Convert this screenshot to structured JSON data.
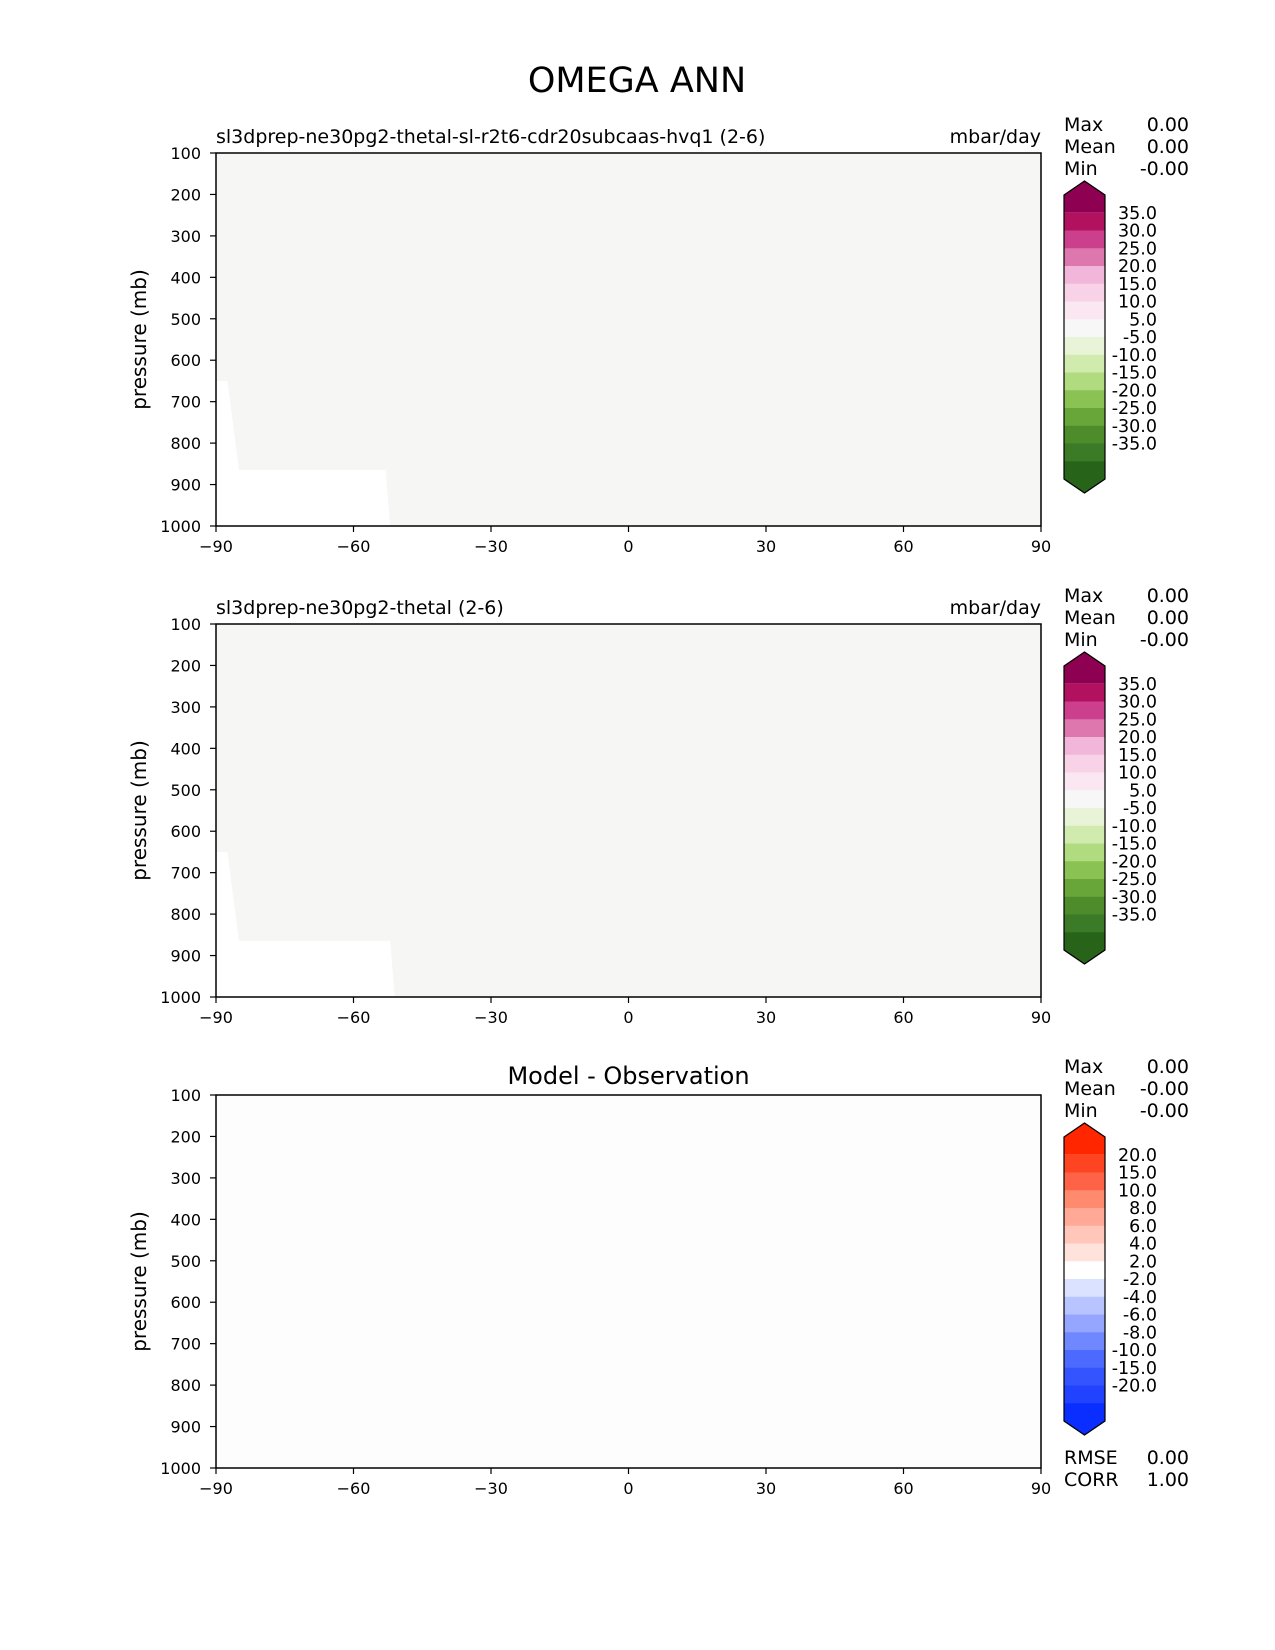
{
  "figure_title": "OMEGA ANN",
  "colors": {
    "panel_fill": "#f6f6f4",
    "diff_fill": "#fdfdfd",
    "white_patch": "#ffffff",
    "frame": "#000000",
    "colorbar_edge": "#000000"
  },
  "chart_data": [
    {
      "type": "heatmap",
      "title": "sl3dprep-ne30pg2-thetal-sl-r2t6-cdr20subcaas-hvq1 (2-6)",
      "units": "mbar/day",
      "ylabel": "pressure (mb)",
      "xlabel": "",
      "x_ticks": [
        "−90",
        "−60",
        "−30",
        "0",
        "30",
        "60",
        "90"
      ],
      "y_ticks": [
        "100",
        "200",
        "300",
        "400",
        "500",
        "600",
        "700",
        "800",
        "900",
        "1000"
      ],
      "xlim": [
        -90,
        90
      ],
      "ylim": [
        1000,
        100
      ],
      "field_value": 0.0,
      "missing_region": [
        [
          -90,
          650
        ],
        [
          -87.5,
          650
        ],
        [
          -85,
          865
        ],
        [
          -53,
          865
        ],
        [
          -52,
          1000
        ],
        [
          -90,
          1000
        ]
      ],
      "stats": [
        {
          "label": "Max",
          "value": "0.00"
        },
        {
          "label": "Mean",
          "value": "0.00"
        },
        {
          "label": "Min",
          "value": "-0.00"
        }
      ],
      "colorbar": {
        "labels": [
          "35.0",
          "30.0",
          "25.0",
          "20.0",
          "15.0",
          "10.0",
          "5.0",
          "-5.0",
          "-10.0",
          "-15.0",
          "-20.0",
          "-25.0",
          "-30.0",
          "-35.0"
        ],
        "colors": [
          "#8e0152",
          "#b2115f",
          "#cb3f8c",
          "#de77ae",
          "#f1b6da",
          "#f8d3e7",
          "#fbe7f1",
          "#f7f7f7",
          "#e8f3d8",
          "#d1ebaf",
          "#b0db7f",
          "#8bc254",
          "#69a63a",
          "#4d8b2b",
          "#3b7a26",
          "#276419"
        ]
      }
    },
    {
      "type": "heatmap",
      "title": "sl3dprep-ne30pg2-thetal (2-6)",
      "units": "mbar/day",
      "ylabel": "pressure (mb)",
      "xlabel": "",
      "x_ticks": [
        "−90",
        "−60",
        "−30",
        "0",
        "30",
        "60",
        "90"
      ],
      "y_ticks": [
        "100",
        "200",
        "300",
        "400",
        "500",
        "600",
        "700",
        "800",
        "900",
        "1000"
      ],
      "xlim": [
        -90,
        90
      ],
      "ylim": [
        1000,
        100
      ],
      "field_value": 0.0,
      "missing_region": [
        [
          -90,
          650
        ],
        [
          -87.5,
          650
        ],
        [
          -85,
          865
        ],
        [
          -52,
          865
        ],
        [
          -51,
          1000
        ],
        [
          -90,
          1000
        ]
      ],
      "stats": [
        {
          "label": "Max",
          "value": "0.00"
        },
        {
          "label": "Mean",
          "value": "0.00"
        },
        {
          "label": "Min",
          "value": "-0.00"
        }
      ],
      "colorbar": {
        "labels": [
          "35.0",
          "30.0",
          "25.0",
          "20.0",
          "15.0",
          "10.0",
          "5.0",
          "-5.0",
          "-10.0",
          "-15.0",
          "-20.0",
          "-25.0",
          "-30.0",
          "-35.0"
        ],
        "colors": [
          "#8e0152",
          "#b2115f",
          "#cb3f8c",
          "#de77ae",
          "#f1b6da",
          "#f8d3e7",
          "#fbe7f1",
          "#f7f7f7",
          "#e8f3d8",
          "#d1ebaf",
          "#b0db7f",
          "#8bc254",
          "#69a63a",
          "#4d8b2b",
          "#3b7a26",
          "#276419"
        ]
      }
    },
    {
      "type": "heatmap",
      "title": "Model - Observation",
      "units": "",
      "ylabel": "pressure (mb)",
      "xlabel": "",
      "x_ticks": [
        "−90",
        "−60",
        "−30",
        "0",
        "30",
        "60",
        "90"
      ],
      "y_ticks": [
        "100",
        "200",
        "300",
        "400",
        "500",
        "600",
        "700",
        "800",
        "900",
        "1000"
      ],
      "xlim": [
        -90,
        90
      ],
      "ylim": [
        1000,
        100
      ],
      "field_value": 0.0,
      "missing_region": [],
      "stats": [
        {
          "label": "Max",
          "value": "0.00"
        },
        {
          "label": "Mean",
          "value": "-0.00"
        },
        {
          "label": "Min",
          "value": "-0.00"
        }
      ],
      "footer_stats": [
        {
          "label": "RMSE",
          "value": "0.00"
        },
        {
          "label": "CORR",
          "value": "1.00"
        }
      ],
      "colorbar": {
        "labels": [
          "20.0",
          "15.0",
          "10.0",
          "8.0",
          "6.0",
          "4.0",
          "2.0",
          "-2.0",
          "-4.0",
          "-6.0",
          "-8.0",
          "-10.0",
          "-15.0",
          "-20.0"
        ],
        "colors": [
          "#ff2600",
          "#ff4422",
          "#ff6347",
          "#ff8a6e",
          "#ffa996",
          "#ffc6b9",
          "#ffe2db",
          "#ffffff",
          "#dbe2ff",
          "#b7c4ff",
          "#94a6ff",
          "#7088ff",
          "#4c6aff",
          "#3354ff",
          "#2143ff",
          "#0a2eff"
        ]
      }
    }
  ]
}
